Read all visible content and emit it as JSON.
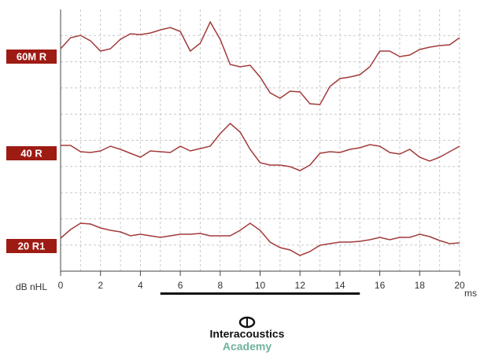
{
  "chart_data": {
    "type": "line",
    "y_label": "dB nHL",
    "x_label": "ms",
    "x": [
      0,
      0.5,
      1,
      1.5,
      2,
      2.5,
      3,
      3.5,
      4,
      4.5,
      5,
      5.5,
      6,
      6.5,
      7,
      7.5,
      8,
      8.5,
      9,
      9.5,
      10,
      10.5,
      11,
      11.5,
      12,
      12.5,
      13,
      13.5,
      14,
      14.5,
      15,
      15.5,
      16,
      16.5,
      17,
      17.5,
      18,
      18.5,
      19,
      19.5,
      20
    ],
    "series": [
      {
        "name": "60M R",
        "color": "#a33a3a",
        "values": [
          283,
          297,
          300,
          293,
          280,
          283,
          295,
          302,
          301,
          303,
          307,
          310,
          305,
          280,
          290,
          317,
          295,
          263,
          260,
          262,
          247,
          227,
          220,
          229,
          228,
          213,
          212,
          235,
          245,
          247,
          250,
          260,
          280,
          280,
          273,
          275,
          282,
          285,
          287,
          288,
          297
        ]
      },
      {
        "name": "40 R",
        "color": "#a33a3a",
        "values": [
          160,
          160,
          152,
          151,
          153,
          159,
          155,
          150,
          145,
          153,
          152,
          151,
          159,
          153,
          156,
          159,
          175,
          188,
          177,
          155,
          138,
          135,
          135,
          133,
          128,
          135,
          150,
          152,
          151,
          155,
          157,
          161,
          159,
          151,
          149,
          155,
          145,
          140,
          145,
          152,
          159
        ]
      },
      {
        "name": "20 R1",
        "color": "#a33a3a",
        "values": [
          42,
          53,
          61,
          60,
          55,
          52,
          50,
          45,
          47,
          45,
          43,
          45,
          47,
          47,
          48,
          45,
          45,
          45,
          52,
          61,
          52,
          37,
          30,
          27,
          20,
          25,
          33,
          35,
          37,
          37,
          38,
          40,
          43,
          40,
          43,
          43,
          47,
          44,
          39,
          35,
          36
        ]
      }
    ],
    "label_color": "#9e1b14",
    "marker_range": [
      5,
      15
    ],
    "xlim": [
      0,
      20
    ],
    "xticks": [
      0,
      2,
      4,
      6,
      8,
      10,
      12,
      14,
      16,
      18,
      20
    ],
    "ylim": [
      0,
      333
    ],
    "grid": true
  },
  "branding": {
    "name": "Interacoustics",
    "subtitle": "Academy"
  }
}
